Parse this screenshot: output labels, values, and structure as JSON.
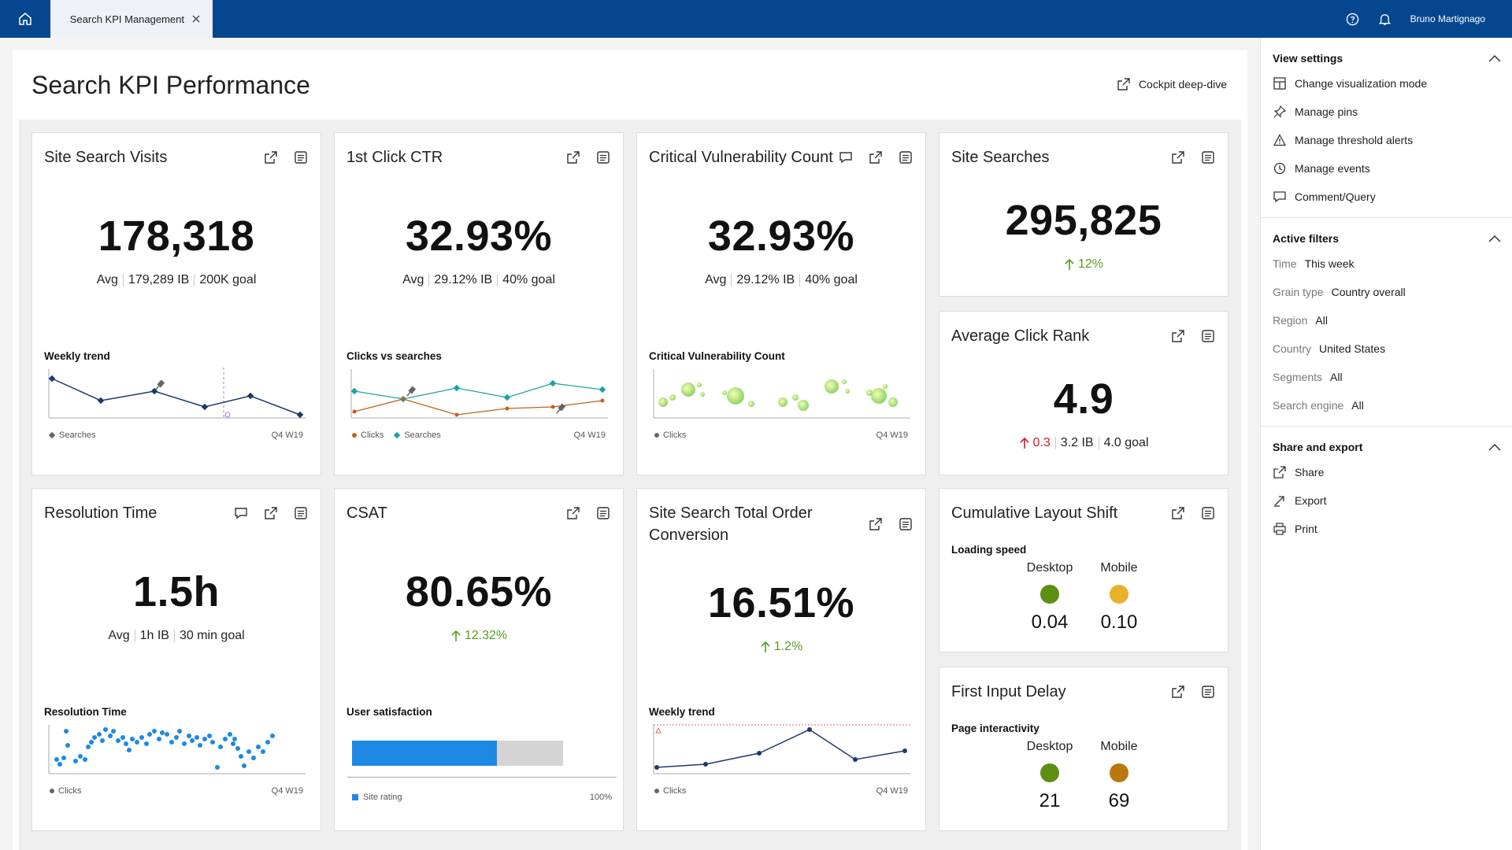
{
  "topbar": {
    "tab_label": "Search KPI Management",
    "user_name": "Bruno Martignago"
  },
  "page": {
    "title": "Search KPI Performance",
    "deep_dive_label": "Cockpit deep-dive"
  },
  "cards": {
    "site_search_visits": {
      "title": "Site Search Visits",
      "value": "178,318",
      "avg_label": "Avg",
      "ib": "179,289 IB",
      "goal": "200K goal",
      "chart_title": "Weekly trend",
      "legend": "Searches",
      "period": "Q4 W19"
    },
    "first_click_ctr": {
      "title": "1st Click CTR",
      "value": "32.93%",
      "avg_label": "Avg",
      "ib": "29.12% IB",
      "goal": "40% goal",
      "chart_title": "Clicks vs searches",
      "legend_a": "Clicks",
      "legend_b": "Searches",
      "period": "Q4 W19"
    },
    "critical_vulnerability": {
      "title": "Critical Vulnerability Count",
      "value": "32.93%",
      "avg_label": "Avg",
      "ib": "29.12% IB",
      "goal": "40% goal",
      "chart_title": "Critical Vulnerability Count",
      "legend": "Clicks",
      "period": "Q4 W19"
    },
    "site_searches": {
      "title": "Site Searches",
      "value": "295,825",
      "delta": "12%"
    },
    "average_click_rank": {
      "title": "Average Click Rank",
      "value": "4.9",
      "delta": "0.3",
      "ib": "3.2 IB",
      "goal": "4.0 goal"
    },
    "resolution_time": {
      "title": "Resolution Time",
      "value": "1.5h",
      "avg_label": "Avg",
      "ib": "1h IB",
      "goal": "30 min goal",
      "chart_title": "Resolution Time",
      "legend": "Clicks",
      "period": "Q4 W19"
    },
    "csat": {
      "title": "CSAT",
      "value": "80.65%",
      "delta": "12.32%",
      "chart_title": "User satisfaction",
      "legend": "Site rating",
      "max_label": "100%",
      "rating_fraction": 0.8065
    },
    "order_conversion": {
      "title": "Site Search Total Order Conversion",
      "value": "16.51%",
      "delta": "1.2%",
      "chart_title": "Weekly trend",
      "legend": "Clicks",
      "period": "Q4 W19"
    },
    "cumulative_layout_shift": {
      "title": "Cumulative Layout Shift",
      "section": "Loading speed",
      "desktop_label": "Desktop",
      "mobile_label": "Mobile",
      "desktop_value": "0.04",
      "mobile_value": "0.10",
      "desktop_color": "#5e8e12",
      "mobile_color": "#e9b02a"
    },
    "first_input_delay": {
      "title": "First Input Delay",
      "section": "Page interactivity",
      "desktop_label": "Desktop",
      "mobile_label": "Mobile",
      "desktop_value": "21",
      "mobile_value": "69",
      "desktop_color": "#5e8e12",
      "mobile_color": "#b8780f"
    }
  },
  "sidebar": {
    "view_settings": {
      "title": "View settings",
      "items": [
        "Change visualization mode",
        "Manage pins",
        "Manage threshold alerts",
        "Manage events",
        "Comment/Query"
      ]
    },
    "active_filters": {
      "title": "Active filters",
      "items": [
        {
          "key": "Time",
          "value": "This week"
        },
        {
          "key": "Grain type",
          "value": "Country overall"
        },
        {
          "key": "Region",
          "value": "All"
        },
        {
          "key": "Country",
          "value": "United States"
        },
        {
          "key": "Segments",
          "value": "All"
        },
        {
          "key": "Search engine",
          "value": "All"
        }
      ]
    },
    "share_export": {
      "title": "Share and export",
      "items": [
        "Share",
        "Export",
        "Print"
      ]
    }
  },
  "colors": {
    "topbar": "#04478f",
    "positive": "#5a9b1f",
    "negative": "#cc1f1f",
    "series_navy": "#1b3a6b",
    "series_teal": "#1aa3a3",
    "series_orange": "#c4601c",
    "bar_blue": "#1e88e5"
  }
}
